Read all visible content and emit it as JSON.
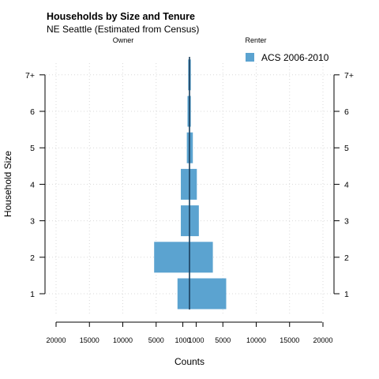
{
  "chart_data": {
    "type": "bar",
    "orientation": "horizontal-mirrored",
    "title": "Households by Size and Tenure",
    "subtitle": "NE Seattle (Estimated from Census)",
    "panels": [
      "Owner",
      "Renter"
    ],
    "categories": [
      "1",
      "2",
      "3",
      "4",
      "5",
      "6",
      "7+"
    ],
    "series": [
      {
        "name": "ACS 2006-2010",
        "color": "#5ba3d0",
        "owner_values": [
          1800,
          5300,
          1300,
          1300,
          400,
          300,
          200
        ],
        "renter_values": [
          5500,
          3500,
          1400,
          1100,
          500,
          200,
          200
        ]
      }
    ],
    "xlabel": "Counts",
    "ylabel": "Household Size",
    "xticks": [
      "20000",
      "15000",
      "10000",
      "5000",
      "1000",
      "1000",
      "5000",
      "10000",
      "15000",
      "20000"
    ],
    "grid": true,
    "legend_position": "top-right"
  }
}
